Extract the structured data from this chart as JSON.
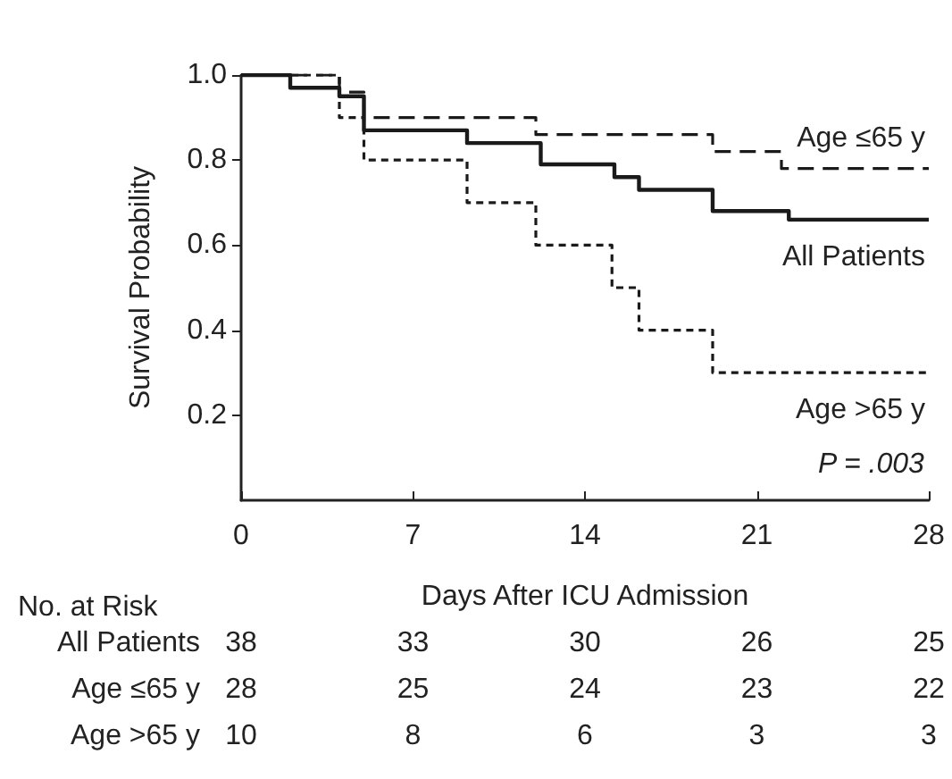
{
  "chart_data": {
    "type": "step",
    "xlabel": "Days After ICU Admission",
    "ylabel": "Survival Probability",
    "series": [
      {
        "name": "Age ≤65 y",
        "color": "#1a1a1a",
        "line_style": "dashed",
        "x": [
          0,
          4,
          5,
          12,
          19.2,
          22,
          28
        ],
        "values": [
          1.0,
          0.96,
          0.9,
          0.86,
          0.82,
          0.78,
          0.78
        ]
      },
      {
        "name": "All Patients",
        "color": "#1a1a1a",
        "line_style": "solid",
        "x": [
          0,
          2,
          4,
          5,
          9.2,
          12.2,
          15.2,
          16.2,
          19.2,
          22.3,
          28
        ],
        "values": [
          1.0,
          0.97,
          0.95,
          0.87,
          0.84,
          0.79,
          0.76,
          0.73,
          0.68,
          0.66,
          0.66
        ]
      },
      {
        "name": "Age >65 y",
        "color": "#1a1a1a",
        "line_style": "dashed",
        "x": [
          0,
          4,
          5,
          9.2,
          12,
          15.1,
          16.2,
          19.2,
          28
        ],
        "values": [
          1.0,
          0.9,
          0.8,
          0.7,
          0.6,
          0.5,
          0.4,
          0.3,
          0.3
        ]
      }
    ],
    "xlim": [
      0,
      28
    ],
    "xticks": [
      0,
      7,
      14,
      21,
      28
    ],
    "ylim": [
      0,
      1.0
    ],
    "yticks": [
      {
        "value": 0.2,
        "label": "0.2"
      },
      {
        "value": 0.4,
        "label": "0.4"
      },
      {
        "value": 0.6,
        "label": "0.6"
      },
      {
        "value": 0.8,
        "label": "0.8"
      },
      {
        "value": 1.0,
        "label": "1.0"
      }
    ],
    "grid": false,
    "legend": false,
    "marker": "none",
    "annotations": [
      "P = .003",
      "No. at Risk",
      "All Patients",
      "38",
      "33",
      "30",
      "26",
      "25",
      "Age ≤65 y",
      "28",
      "25",
      "24",
      "23",
      "22",
      "Age >65 y",
      "10",
      "8",
      "6",
      "3",
      "3"
    ]
  }
}
